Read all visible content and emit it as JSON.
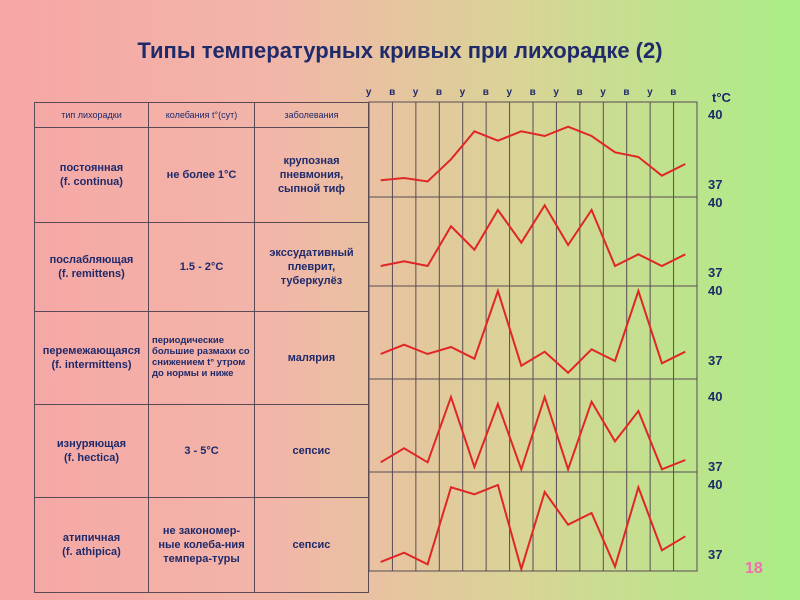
{
  "title": "Типы температурных кривых при лихорадке (2)",
  "table": {
    "headers": [
      "тип лихорадки",
      "колебания t°(сут)",
      "заболевания"
    ],
    "rows": [
      {
        "type_name": "постоянная",
        "type_latin": "(f. continua)",
        "fluctuation": "не более 1°С",
        "diseases": "крупозная пневмония, сыпной тиф"
      },
      {
        "type_name": "послабляющая",
        "type_latin": "(f. remittens)",
        "fluctuation": "1.5 - 2°С",
        "diseases": "экссудативный плеврит, туберкулёз"
      },
      {
        "type_name": "перемежающаяся",
        "type_latin": "(f. intermittens)",
        "fluctuation": "периодические большие размахи со снижением t° утром до нормы и ниже",
        "diseases": "малярия"
      },
      {
        "type_name": "изнуряющая",
        "type_latin": "(f. hectica)",
        "fluctuation": "3 - 5°С",
        "diseases": "сепсис"
      },
      {
        "type_name": "атипичная",
        "type_latin": "(f. athipica)",
        "fluctuation": "не закономер-ные колеба-ния темпера-туры",
        "diseases": "сепсис"
      }
    ]
  },
  "day_labels": [
    "у",
    "в",
    "у",
    "в",
    "у",
    "в",
    "у",
    "в",
    "у",
    "в",
    "у",
    "в",
    "у",
    "в"
  ],
  "unit_label": "t°С",
  "scale_labels": {
    "high": "40",
    "low": "37"
  },
  "page_number": "18",
  "chart_data": [
    {
      "type": "line",
      "name": "постоянная",
      "ylim": [
        37,
        40
      ],
      "x": [
        "у",
        "в",
        "у",
        "в",
        "у",
        "в",
        "у",
        "в",
        "у",
        "в",
        "у",
        "в",
        "у",
        "в"
      ],
      "values": [
        37.2,
        37.3,
        37.15,
        38.1,
        39.3,
        38.9,
        39.3,
        39.1,
        39.5,
        39.1,
        38.4,
        38.2,
        37.4,
        37.9
      ]
    },
    {
      "type": "line",
      "name": "послабляющая",
      "ylim": [
        37,
        40
      ],
      "x": [
        "у",
        "в",
        "у",
        "в",
        "у",
        "в",
        "у",
        "в",
        "у",
        "в",
        "у",
        "в",
        "у",
        "в"
      ],
      "values": [
        37.3,
        37.5,
        37.3,
        39.0,
        38.0,
        39.7,
        38.3,
        39.9,
        38.2,
        39.7,
        37.3,
        37.8,
        37.3,
        37.8
      ]
    },
    {
      "type": "line",
      "name": "перемежающаяся",
      "ylim": [
        37,
        40
      ],
      "x": [
        "у",
        "в",
        "у",
        "в",
        "у",
        "в",
        "у",
        "в",
        "у",
        "в",
        "у",
        "в",
        "у",
        "в"
      ],
      "values": [
        37.3,
        37.7,
        37.3,
        37.6,
        37.1,
        40.0,
        36.8,
        37.4,
        36.5,
        37.5,
        37.0,
        40.0,
        36.9,
        37.4
      ]
    },
    {
      "type": "line",
      "name": "изнуряющая",
      "ylim": [
        37,
        40
      ],
      "x": [
        "у",
        "в",
        "у",
        "в",
        "у",
        "в",
        "у",
        "в",
        "у",
        "в",
        "у",
        "в",
        "у",
        "в"
      ],
      "values": [
        37.2,
        37.8,
        37.2,
        40.0,
        37.0,
        39.7,
        36.9,
        40.0,
        36.9,
        39.8,
        38.1,
        39.4,
        36.9,
        37.3
      ]
    },
    {
      "type": "line",
      "name": "атипичная",
      "ylim": [
        37,
        40
      ],
      "x": [
        "у",
        "в",
        "у",
        "в",
        "у",
        "в",
        "у",
        "в",
        "у",
        "в",
        "у",
        "в",
        "у",
        "в"
      ],
      "values": [
        36.7,
        37.1,
        36.6,
        39.9,
        39.6,
        40.0,
        36.4,
        39.7,
        38.3,
        38.8,
        36.5,
        39.9,
        37.2,
        37.8
      ]
    }
  ]
}
